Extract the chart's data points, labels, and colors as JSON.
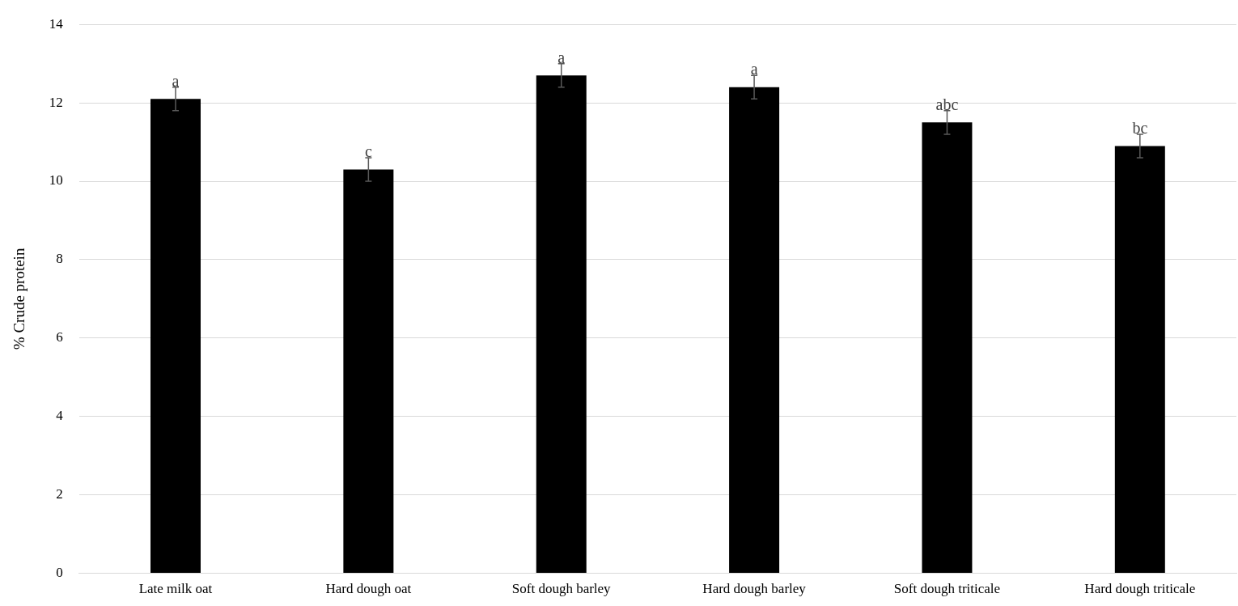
{
  "chart_data": {
    "type": "bar",
    "ylabel": "% Crude protein",
    "categories": [
      "Late milk oat",
      "Hard dough oat",
      "Soft dough barley",
      "Hard dough barley",
      "Soft dough triticale",
      "Hard dough triticale"
    ],
    "values": [
      12.1,
      10.3,
      12.7,
      12.4,
      11.5,
      10.9
    ],
    "errors": [
      0.3,
      0.3,
      0.3,
      0.3,
      0.3,
      0.3
    ],
    "color": "#000000",
    "ylim": [
      0,
      14
    ],
    "yticks": [
      0,
      2,
      4,
      6,
      8,
      10,
      12,
      14
    ],
    "grid": "y",
    "annotations": [
      {
        "text": "a",
        "x": "Late milk oat",
        "y": 12.4
      },
      {
        "text": "c",
        "x": "Hard dough oat",
        "y": 10.6
      },
      {
        "text": "a",
        "x": "Soft dough barley",
        "y": 13
      },
      {
        "text": "a",
        "x": "Hard dough barley",
        "y": 12.7
      },
      {
        "text": "abc",
        "x": "Soft dough triticale",
        "y": 11.8
      },
      {
        "text": "bc",
        "x": "Hard dough triticale",
        "y": 11.2
      }
    ]
  }
}
